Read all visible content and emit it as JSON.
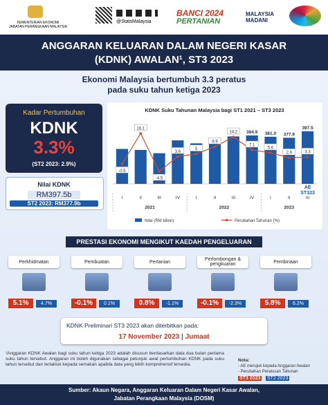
{
  "header": {
    "ministry": "KEMENTERIAN EKONOMI",
    "department": "JABATAN PERANGKAAN MALAYSIA",
    "social": "@StatsMalaysia",
    "census": "BANCI 2024",
    "census_sub": "PERTANIAN",
    "madani": "MALAYSIA MADANI"
  },
  "title": [
    "ANGGARAN KELUARAN DALAM NEGERI KASAR",
    "(KDNK) AWALAN¹, ST3 2023"
  ],
  "subtitle": [
    "Ekonomi Malaysia bertumbuh 3.3 peratus",
    "pada suku tahun ketiga 2023"
  ],
  "summary": {
    "growth_label": "Kadar Pertumbuhan",
    "kdnk": "KDNK",
    "growth": "3.3%",
    "growth_prev": "(ST2 2023: 2.9%)",
    "value_label": "Nilai KDNK",
    "value": "RM397.5b",
    "value_prev": "ST2 2023: RM377.9b"
  },
  "chart_data": {
    "type": "bar",
    "title": "KDNK Suku Tahunan Malaysia bagi ST1 2021 – ST3 2023",
    "categories": [
      "I",
      "II",
      "III",
      "IV",
      "I",
      "II",
      "III",
      "IV",
      "I",
      "II",
      "III"
    ],
    "years": [
      "2021",
      "2022",
      "2023"
    ],
    "annotation": [
      "AE",
      "ST323"
    ],
    "series": [
      {
        "name": "Nilai (RM bilion)",
        "color": "#1f5aa6",
        "values": [
          344,
          341,
          331,
          370,
          361,
          370,
          382,
          384.9,
          381.0,
          377.9,
          397.5
        ],
        "value_labels": [
          null,
          null,
          null,
          null,
          null,
          null,
          null,
          "384.9",
          "381.0",
          "377.9",
          "397.5"
        ]
      },
      {
        "name": "Perubahan Tahunan (%)",
        "type": "line",
        "color": "#d0492f",
        "values": [
          -0.5,
          16.1,
          -4.5,
          3.6,
          5.0,
          8.9,
          14.2,
          7.1,
          5.6,
          2.9,
          3.3
        ]
      }
    ]
  },
  "section_title": "PRESTASI EKONOMI MENGIKUT KAEDAH PENGELUARAN",
  "sectors": [
    {
      "name": "Perkhidmatan",
      "st3": "5.1%",
      "st2": "4.7%"
    },
    {
      "name": "Pembuatan",
      "st3": "-0.1%",
      "st2": "0.1%"
    },
    {
      "name": "Pertanian",
      "st3": "0.8%",
      "st2": "-1.1%"
    },
    {
      "name": "Perlombongan & pengkuaran",
      "st3": "-0.1%",
      "st2": "-2.3%"
    },
    {
      "name": "Pembinaan",
      "st3": "5.8%",
      "st2": "6.2%"
    }
  ],
  "release": {
    "text": "KDNK Preliminari ST3 2023 akan diterbitkan pada:",
    "date": "17 November 2023 | Jumaat"
  },
  "footnote": "¹Anggaran KDNK Awalan bagi suku tahun ketiga 2023 adalah disusun berdasarkan data dua bulan pertama suku tahun tersebut. Anggaran ini boleh digunakan sebagai petunjuk awal pertumbuhan KDNK pada suku tahun tersebut dan tertakluk kepada semakan apabila data yang lebih komprehensif tersedia.",
  "note": {
    "title": "Nota:",
    "items": [
      "- AE merujuk kepada Anggaran Awalan",
      "- Perubahan Peratusan Tahunan"
    ],
    "legend_st3": "ST3 2023",
    "legend_st2": "ST2 2023"
  },
  "footer": [
    "Sumber: Akaun Negara, Anggaran Keluaran Dalam Negeri Kasar Awalan,",
    "Jabatan Perangkaan Malaysia (DOSM)"
  ]
}
